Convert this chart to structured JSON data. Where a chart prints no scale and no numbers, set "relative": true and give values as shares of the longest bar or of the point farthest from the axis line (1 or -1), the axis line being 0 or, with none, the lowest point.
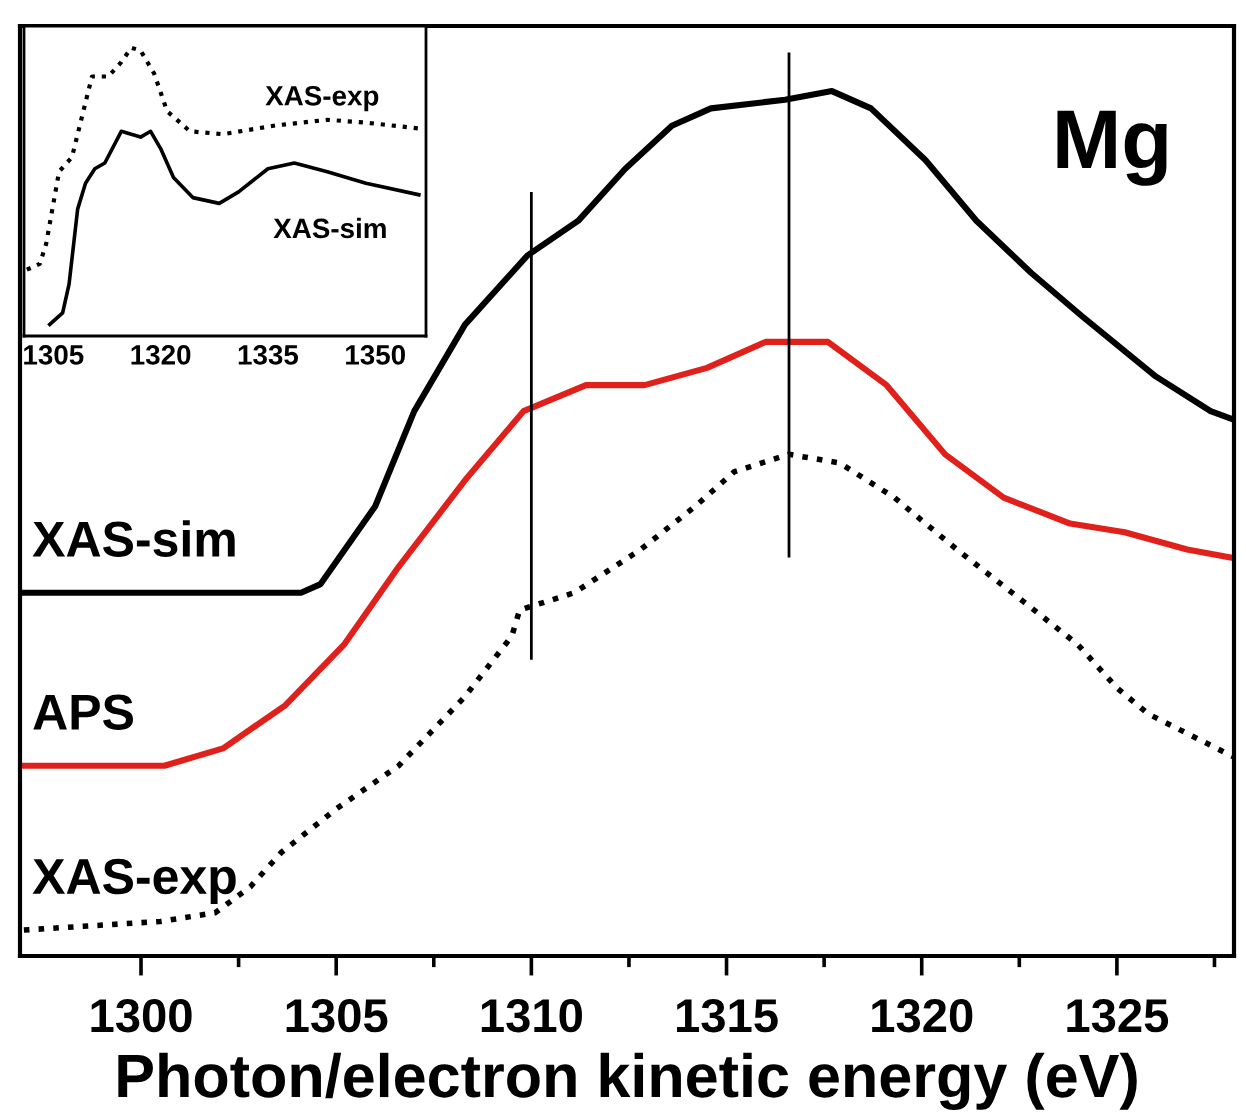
{
  "chart_data": [
    {
      "type": "line",
      "relative": true,
      "xlabel": "Photon/electron kinetic energy (eV)",
      "annotations": [
        "Mg"
      ],
      "legend": false,
      "grid": false,
      "xlim": [
        1296.9,
        1328.0
      ],
      "xticks": [
        1300,
        {
          "value": 1302.5,
          "label": null
        },
        1305,
        {
          "value": 1307.5,
          "label": null
        },
        1310,
        {
          "value": 1312.5,
          "label": null
        },
        1315,
        {
          "value": 1317.5,
          "label": null
        },
        1320,
        {
          "value": 1322.5,
          "label": null
        },
        1325,
        {
          "value": 1327.5,
          "label": null
        }
      ],
      "ref_lines": [
        {
          "axis": "x",
          "value": 1310,
          "color": "#000000"
        },
        {
          "axis": "x",
          "value": 1316.6,
          "color": "#000000"
        }
      ],
      "series": [
        {
          "name": "XAS-sim",
          "color": "#000000",
          "line_style": "solid",
          "x": [
            1296.9,
            1303.0,
            1304.1,
            1304.6,
            1306.0,
            1307.0,
            1308.3,
            1309.9,
            1311.2,
            1312.4,
            1313.6,
            1314.6,
            1316.5,
            1317.7,
            1318.7,
            1320.1,
            1321.4,
            1322.8,
            1324.1,
            1326.0,
            1327.4,
            1328.0
          ],
          "values": [
            0.42,
            0.42,
            0.42,
            0.43,
            0.52,
            0.63,
            0.73,
            0.81,
            0.85,
            0.91,
            0.96,
            0.98,
            0.99,
            1.0,
            0.98,
            0.92,
            0.85,
            0.79,
            0.74,
            0.67,
            0.63,
            0.62
          ]
        },
        {
          "name": "APS",
          "color": "#e0201b",
          "line_style": "solid",
          "x": [
            1296.9,
            1300.6,
            1302.1,
            1303.7,
            1305.2,
            1306.6,
            1308.3,
            1309.8,
            1311.4,
            1312.9,
            1314.5,
            1316.0,
            1317.6,
            1319.1,
            1320.6,
            1322.1,
            1323.8,
            1325.2,
            1326.8,
            1328.0
          ],
          "values": [
            0.22,
            0.22,
            0.24,
            0.29,
            0.36,
            0.45,
            0.55,
            0.63,
            0.66,
            0.66,
            0.68,
            0.71,
            0.71,
            0.66,
            0.58,
            0.53,
            0.5,
            0.49,
            0.47,
            0.46
          ]
        },
        {
          "name": "XAS-exp",
          "color": "#000000",
          "line_style": "dotted",
          "x": [
            1297.0,
            1300.5,
            1301.9,
            1302.8,
            1303.6,
            1305.0,
            1306.6,
            1308.3,
            1309.5,
            1309.7,
            1311.1,
            1312.8,
            1314.2,
            1315.2,
            1316.6,
            1317.9,
            1319.3,
            1320.9,
            1322.6,
            1324.0,
            1325.0,
            1325.8,
            1328.0
          ],
          "values": [
            0.03,
            0.04,
            0.05,
            0.08,
            0.12,
            0.17,
            0.22,
            0.3,
            0.37,
            0.4,
            0.42,
            0.47,
            0.52,
            0.56,
            0.58,
            0.57,
            0.53,
            0.47,
            0.41,
            0.36,
            0.31,
            0.28,
            0.23
          ]
        }
      ]
    },
    {
      "type": "line",
      "relative": true,
      "legend": false,
      "grid": false,
      "xlim": [
        1300.9,
        1357.1
      ],
      "xticks": [
        1305,
        1320,
        1335,
        1350
      ],
      "series": [
        {
          "name": "XAS-exp",
          "color": "#000000",
          "line_style": "dotted",
          "x": [
            1301.3,
            1303.1,
            1304.0,
            1305.8,
            1307.6,
            1310.4,
            1312.7,
            1314.5,
            1315.9,
            1317.2,
            1319.1,
            1320.9,
            1324.1,
            1328.7,
            1336.0,
            1343.3,
            1348.7,
            1356.1
          ],
          "values": [
            0.23,
            0.25,
            0.32,
            0.57,
            0.62,
            0.9,
            0.9,
            0.95,
            1.0,
            0.99,
            0.91,
            0.78,
            0.71,
            0.7,
            0.73,
            0.75,
            0.74,
            0.72
          ]
        },
        {
          "name": "XAS-sim",
          "color": "#000000",
          "line_style": "solid",
          "x": [
            1304.5,
            1306.3,
            1307.2,
            1308.4,
            1309.5,
            1310.8,
            1312.2,
            1314.5,
            1315.9,
            1317.2,
            1318.6,
            1320.0,
            1321.8,
            1324.5,
            1328.2,
            1330.9,
            1335.0,
            1338.7,
            1343.3,
            1348.7,
            1356.1
          ],
          "values": [
            0.04,
            0.08,
            0.18,
            0.44,
            0.53,
            0.58,
            0.6,
            0.71,
            0.7,
            0.69,
            0.71,
            0.65,
            0.55,
            0.48,
            0.46,
            0.5,
            0.58,
            0.6,
            0.57,
            0.53,
            0.49
          ]
        }
      ]
    }
  ]
}
